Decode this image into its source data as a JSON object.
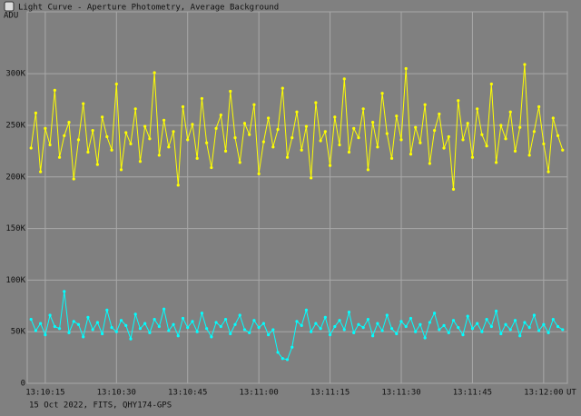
{
  "chart_data": {
    "type": "line",
    "title": "Light Curve - Aperture Photometry, Average Background",
    "ylabel": "ADU",
    "xlabel": "UT",
    "footer": "15 Oct 2022, FITS, QHY174-GPS",
    "x": [
      47412,
      47413,
      47414,
      47415,
      47416,
      47417,
      47418,
      47419,
      47420,
      47421,
      47422,
      47423,
      47424,
      47425,
      47426,
      47427,
      47428,
      47429,
      47430,
      47431,
      47432,
      47433,
      47434,
      47435,
      47436,
      47437,
      47438,
      47439,
      47440,
      47441,
      47442,
      47443,
      47444,
      47445,
      47446,
      47447,
      47448,
      47449,
      47450,
      47451,
      47452,
      47453,
      47454,
      47455,
      47456,
      47457,
      47458,
      47459,
      47460,
      47461,
      47462,
      47463,
      47464,
      47465,
      47466,
      47467,
      47468,
      47469,
      47470,
      47471,
      47472,
      47473,
      47474,
      47475,
      47476,
      47477,
      47478,
      47479,
      47480,
      47481,
      47482,
      47483,
      47484,
      47485,
      47486,
      47487,
      47488,
      47489,
      47490,
      47491,
      47492,
      47493,
      47494,
      47495,
      47496,
      47497,
      47498,
      47499,
      47500,
      47501,
      47502,
      47503,
      47504,
      47505,
      47506,
      47507,
      47508,
      47509,
      47510,
      47511,
      47512,
      47513,
      47514,
      47515,
      47516,
      47517,
      47518,
      47519,
      47520,
      47521,
      47522,
      47523,
      47524
    ],
    "series": [
      {
        "color": "#ffff00",
        "values": [
          228000,
          262000,
          205000,
          247000,
          231000,
          284000,
          219000,
          240000,
          253000,
          198000,
          236000,
          271000,
          224000,
          245000,
          212000,
          258000,
          239000,
          226000,
          290000,
          207000,
          243000,
          232000,
          266000,
          215000,
          249000,
          237000,
          301000,
          221000,
          255000,
          229000,
          244000,
          192000,
          268000,
          236000,
          251000,
          218000,
          276000,
          233000,
          209000,
          247000,
          260000,
          225000,
          283000,
          238000,
          214000,
          252000,
          241000,
          270000,
          203000,
          234000,
          257000,
          229000,
          246000,
          286000,
          219000,
          238000,
          263000,
          226000,
          249000,
          199000,
          272000,
          235000,
          244000,
          211000,
          258000,
          231000,
          295000,
          224000,
          247000,
          238000,
          266000,
          207000,
          253000,
          229000,
          281000,
          242000,
          218000,
          259000,
          236000,
          305000,
          222000,
          248000,
          233000,
          270000,
          213000,
          245000,
          261000,
          228000,
          239000,
          188000,
          274000,
          236000,
          252000,
          219000,
          266000,
          241000,
          230000,
          290000,
          214000,
          250000,
          237000,
          263000,
          225000,
          248000,
          309000,
          221000,
          244000,
          268000,
          232000,
          205000,
          257000,
          240000,
          226000
        ]
      },
      {
        "color": "#00ffff",
        "values": [
          62000,
          51000,
          58000,
          47000,
          66000,
          55000,
          53000,
          89000,
          49000,
          60000,
          57000,
          45000,
          64000,
          52000,
          59000,
          48000,
          71000,
          54000,
          50000,
          61000,
          56000,
          43000,
          67000,
          53000,
          58000,
          49000,
          62000,
          55000,
          72000,
          51000,
          57000,
          46000,
          63000,
          54000,
          60000,
          50000,
          68000,
          53000,
          45000,
          59000,
          55000,
          62000,
          48000,
          57000,
          66000,
          52000,
          49000,
          61000,
          54000,
          58000,
          47000,
          52000,
          30000,
          24000,
          23000,
          35000,
          60000,
          56000,
          71000,
          50000,
          58000,
          53000,
          64000,
          47000,
          55000,
          61000,
          52000,
          69000,
          49000,
          57000,
          54000,
          62000,
          46000,
          58000,
          51000,
          66000,
          53000,
          48000,
          60000,
          55000,
          63000,
          50000,
          57000,
          44000,
          59000,
          68000,
          52000,
          56000,
          49000,
          61000,
          54000,
          47000,
          65000,
          53000,
          58000,
          50000,
          62000,
          55000,
          70000,
          48000,
          57000,
          52000,
          61000,
          46000,
          59000,
          54000,
          66000,
          51000,
          57000,
          49000,
          62000,
          55000,
          52000
        ]
      }
    ],
    "xlim": [
      47411.2,
      47525
    ],
    "xticks": [
      {
        "value": 47415,
        "label": "13:10:15"
      },
      {
        "value": 47430,
        "label": "13:10:30"
      },
      {
        "value": 47445,
        "label": "13:10:45"
      },
      {
        "value": 47460,
        "label": "13:11:00"
      },
      {
        "value": 47475,
        "label": "13:11:15"
      },
      {
        "value": 47490,
        "label": "13:11:30"
      },
      {
        "value": 47505,
        "label": "13:11:45"
      },
      {
        "value": 47520,
        "label": "13:12:00"
      }
    ],
    "ylim": [
      0,
      360000
    ],
    "yticks": [
      0,
      {
        "value": 50000,
        "label": "50K"
      },
      {
        "value": 100000,
        "label": "100K"
      },
      {
        "value": 150000,
        "label": "150K"
      },
      {
        "value": 200000,
        "label": "200K"
      },
      {
        "value": 250000,
        "label": "250K"
      },
      {
        "value": 300000,
        "label": "300K"
      }
    ],
    "grid": true
  }
}
